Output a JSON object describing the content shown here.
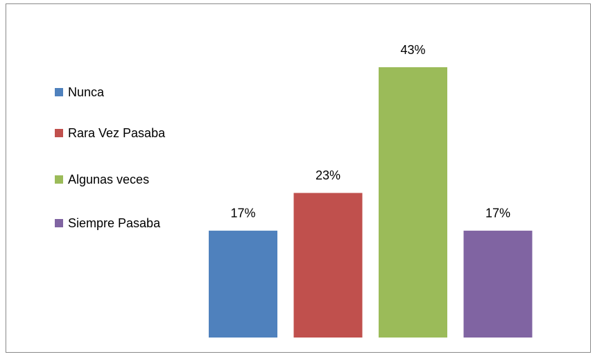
{
  "chart_data": {
    "type": "bar",
    "legend": "left",
    "series": [
      {
        "name": "Nunca",
        "color": "#4f81bd",
        "values": [
          17
        ],
        "value_labels": [
          "17%"
        ]
      },
      {
        "name": "Rara Vez Pasaba",
        "color": "#c0504d",
        "values": [
          23
        ],
        "value_labels": [
          "23%"
        ]
      },
      {
        "name": "Algunas veces",
        "color": "#9bbb59",
        "values": [
          43
        ],
        "value_labels": [
          "43%"
        ]
      },
      {
        "name": "Siempre Pasaba",
        "color": "#8064a2",
        "values": [
          17
        ],
        "value_labels": [
          "17%"
        ]
      }
    ]
  }
}
